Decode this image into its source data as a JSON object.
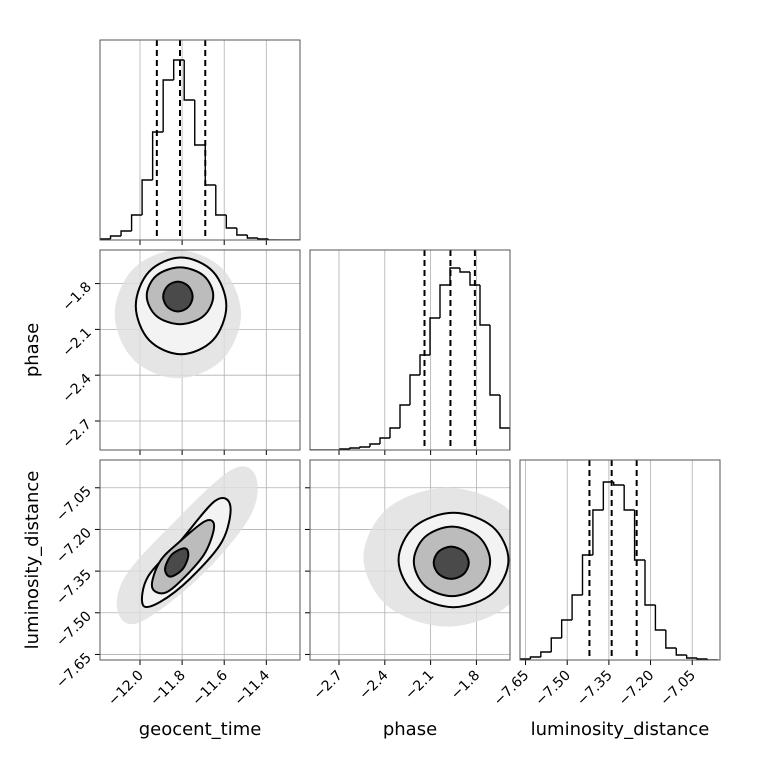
{
  "chart_data": {
    "type": "corner",
    "color": "#000000",
    "grid": true,
    "contour_fills": [
      "#dedede",
      "#f3f3f3",
      "#bcbcbc",
      "#4a4a4a"
    ],
    "parameters": [
      {
        "label": "geocent_time",
        "lim": [
          -12.19,
          -11.24
        ],
        "ticks": [
          {
            "value": -12.0,
            "label": "−12.0"
          },
          {
            "value": -11.8,
            "label": "−11.8"
          },
          {
            "value": -11.6,
            "label": "−11.6"
          },
          {
            "value": -11.4,
            "label": "−11.4"
          }
        ]
      },
      {
        "label": "phase",
        "lim": [
          -2.89,
          -1.58
        ],
        "ticks": [
          {
            "value": -2.7,
            "label": "−2.7"
          },
          {
            "value": -2.4,
            "label": "−2.4"
          },
          {
            "value": -2.1,
            "label": "−2.1"
          },
          {
            "value": -1.8,
            "label": "−1.8"
          }
        ]
      },
      {
        "label": "luminosity_distance",
        "lim": [
          -7.67,
          -6.95
        ],
        "ticks": [
          {
            "value": -7.65,
            "label": "−7.65"
          },
          {
            "value": -7.5,
            "label": "−7.50"
          },
          {
            "value": -7.35,
            "label": "−7.35"
          },
          {
            "value": -7.2,
            "label": "−7.20"
          },
          {
            "value": -7.05,
            "label": "−7.05"
          }
        ]
      }
    ],
    "histograms": [
      {
        "bins": [
          -12.19,
          -12.14,
          -12.09,
          -12.04,
          -11.99,
          -11.94,
          -11.89,
          -11.84,
          -11.79,
          -11.74,
          -11.69,
          -11.64,
          -11.59,
          -11.54,
          -11.49,
          -11.44,
          -11.39,
          -11.34,
          -11.29,
          -11.24
        ],
        "values": [
          1,
          4,
          9,
          25,
          60,
          108,
          160,
          180,
          140,
          95,
          55,
          25,
          12,
          5,
          2,
          1,
          0,
          0,
          0
        ],
        "ylim": [
          0,
          200
        ],
        "quantiles": [
          -11.92,
          -11.81,
          -11.69
        ]
      },
      {
        "bins": [
          -2.89,
          -2.8245,
          -2.759,
          -2.6935,
          -2.628,
          -2.5625,
          -2.497,
          -2.4315,
          -2.366,
          -2.3005,
          -2.235,
          -2.1695,
          -2.104,
          -2.0385,
          -1.973,
          -1.9075,
          -1.842,
          -1.7765,
          -1.711,
          -1.6455,
          -1.58
        ],
        "values": [
          0,
          0,
          0,
          1,
          2,
          3,
          6,
          12,
          22,
          45,
          75,
          95,
          132,
          165,
          182,
          178,
          165,
          125,
          55,
          22
        ],
        "ylim": [
          0,
          200
        ],
        "quantiles": [
          -2.14,
          -1.97,
          -1.81
        ]
      },
      {
        "bins": [
          -7.67,
          -7.6325,
          -7.595,
          -7.5575,
          -7.52,
          -7.4825,
          -7.445,
          -7.4075,
          -7.37,
          -7.3325,
          -7.295,
          -7.2575,
          -7.22,
          -7.1825,
          -7.145,
          -7.1075,
          -7.07,
          -7.0325,
          -6.995,
          -6.9575
        ],
        "values": [
          1,
          3,
          8,
          22,
          40,
          65,
          105,
          150,
          178,
          175,
          150,
          100,
          55,
          30,
          12,
          5,
          2,
          1,
          0
        ],
        "ylim": [
          0,
          200
        ],
        "quantiles": [
          -7.42,
          -7.34,
          -7.25
        ]
      }
    ],
    "pairs": [
      {
        "levels": [
          {
            "x": [
              -11.52,
              -11.608,
              -11.82,
              -12.032,
              -12.12,
              -12.032,
              -11.82,
              -11.608
            ],
            "y": [
              -2.0,
              -1.703,
              -1.58,
              -1.703,
              -2.0,
              -2.297,
              -2.42,
              -2.297
            ]
          },
          {
            "x": [
              -11.59,
              -11.653,
              -11.805,
              -11.957,
              -12.02,
              -11.957,
              -11.805,
              -11.653
            ],
            "y": [
              -1.946,
              -1.722,
              -1.629,
              -1.722,
              -1.946,
              -2.17,
              -2.263,
              -2.17
            ]
          },
          {
            "x": [
              -11.652,
              -11.698,
              -11.81,
              -11.922,
              -11.968,
              -11.922,
              -11.81,
              -11.698
            ],
            "y": [
              -1.88,
              -1.748,
              -1.694,
              -1.748,
              -1.88,
              -2.012,
              -2.066,
              -2.012
            ]
          },
          {
            "x": [
              -11.75,
              -11.771,
              -11.82,
              -11.869,
              -11.89,
              -11.869,
              -11.82,
              -11.771
            ],
            "y": [
              -1.885,
              -1.816,
              -1.787,
              -1.816,
              -1.885,
              -1.954,
              -1.983,
              -1.954
            ]
          }
        ]
      },
      {
        "levels": [
          {
            "x": [
              -12.105,
              -12.071,
              -11.857,
              -11.571,
              -11.452,
              -11.476,
              -11.714,
              -12.0
            ],
            "y": [
              -7.497,
              -7.37,
              -7.188,
              -6.988,
              -7.006,
              -7.152,
              -7.37,
              -7.534
            ]
          },
          {
            "x": [
              -11.986,
              -11.962,
              -11.81,
              -11.643,
              -11.571,
              -11.61,
              -11.762,
              -11.905
            ],
            "y": [
              -7.472,
              -7.37,
              -7.243,
              -7.097,
              -7.115,
              -7.243,
              -7.377,
              -7.461
            ]
          },
          {
            "x": [
              -11.943,
              -11.905,
              -11.81,
              -11.69,
              -11.648,
              -11.69,
              -11.786,
              -11.881
            ],
            "y": [
              -7.406,
              -7.315,
              -7.243,
              -7.17,
              -7.188,
              -7.283,
              -7.37,
              -7.428
            ]
          },
          {
            "x": [
              -11.881,
              -11.848,
              -11.786,
              -11.771,
              -11.8,
              -11.857
            ],
            "y": [
              -7.341,
              -7.29,
              -7.268,
              -7.297,
              -7.345,
              -7.37
            ]
          }
        ]
      },
      {
        "levels": [
          {
            "x": [
              -1.44,
              -1.601,
              -1.99,
              -2.379,
              -2.54,
              -2.379,
              -1.99,
              -1.601
            ],
            "y": [
              -7.3,
              -7.123,
              -7.05,
              -7.123,
              -7.3,
              -7.477,
              -7.55,
              -7.477
            ]
          },
          {
            "x": [
              -1.59,
              -1.695,
              -1.95,
              -2.205,
              -2.31,
              -2.205,
              -1.95,
              -1.695
            ],
            "y": [
              -7.31,
              -7.19,
              -7.14,
              -7.19,
              -7.31,
              -7.43,
              -7.48,
              -7.43
            ]
          },
          {
            "x": [
              -1.71,
              -1.783,
              -1.96,
              -2.137,
              -2.21,
              -2.137,
              -1.96,
              -1.783
            ],
            "y": [
              -7.315,
              -7.227,
              -7.19,
              -7.227,
              -7.315,
              -7.403,
              -7.44,
              -7.403
            ]
          },
          {
            "x": [
              -1.85,
              -1.884,
              -1.965,
              -2.046,
              -2.08,
              -2.046,
              -1.965,
              -1.884
            ],
            "y": [
              -7.32,
              -7.279,
              -7.262,
              -7.279,
              -7.32,
              -7.361,
              -7.378,
              -7.361
            ]
          }
        ]
      }
    ]
  }
}
